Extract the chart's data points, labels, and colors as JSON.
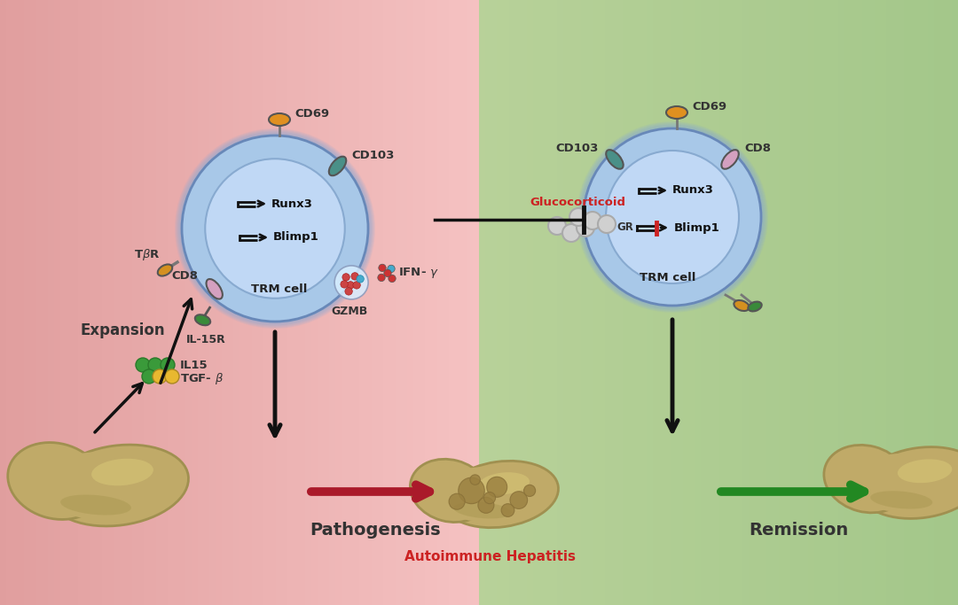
{
  "bg_left": "#f0aaaa",
  "bg_right": "#a8c890",
  "cell_outer": "#98bce0",
  "cell_inner": "#b8d8f5",
  "cd69_color": "#e09020",
  "cd8_color": "#d4a0c0",
  "cd103_color": "#4a9088",
  "il15r_color": "#3a8a3a",
  "tbr_color": "#d49020",
  "gzmb_red": "#cc4444",
  "gzmb_cyan": "#44aacc",
  "il15_green": "#3a9a3a",
  "tgfb_yellow": "#e8b830",
  "drug_gray": "#d0d0d0",
  "liver_color": "#c0aa68",
  "liver_edge": "#a09050",
  "liver_spot": "#9a8040",
  "liver_highlight": "#d8c878",
  "dark_red": "#aa1a2a",
  "dark_green": "#228822",
  "red_text": "#cc2222",
  "black": "#111111",
  "dark_gray": "#333333",
  "label_runx3": "Runx3",
  "label_blimp1": "Blimp1",
  "label_trm": "TRM cell",
  "label_il15r": "IL-15R",
  "label_cd69": "CD69",
  "label_cd8": "CD8",
  "label_cd103": "CD103",
  "label_il15": "IL15",
  "label_tgfb": "TGF- β",
  "label_gzmb": "GZMB",
  "label_ifny": "IFN- γ",
  "label_gr": "GR",
  "label_glucocorticoid": "Glucocorticoid",
  "label_expansion": "Expansion",
  "label_pathogenesis": "Pathogenesis",
  "label_remission": "Remission",
  "label_autoimmune": "Autoimmune Hepatitis"
}
